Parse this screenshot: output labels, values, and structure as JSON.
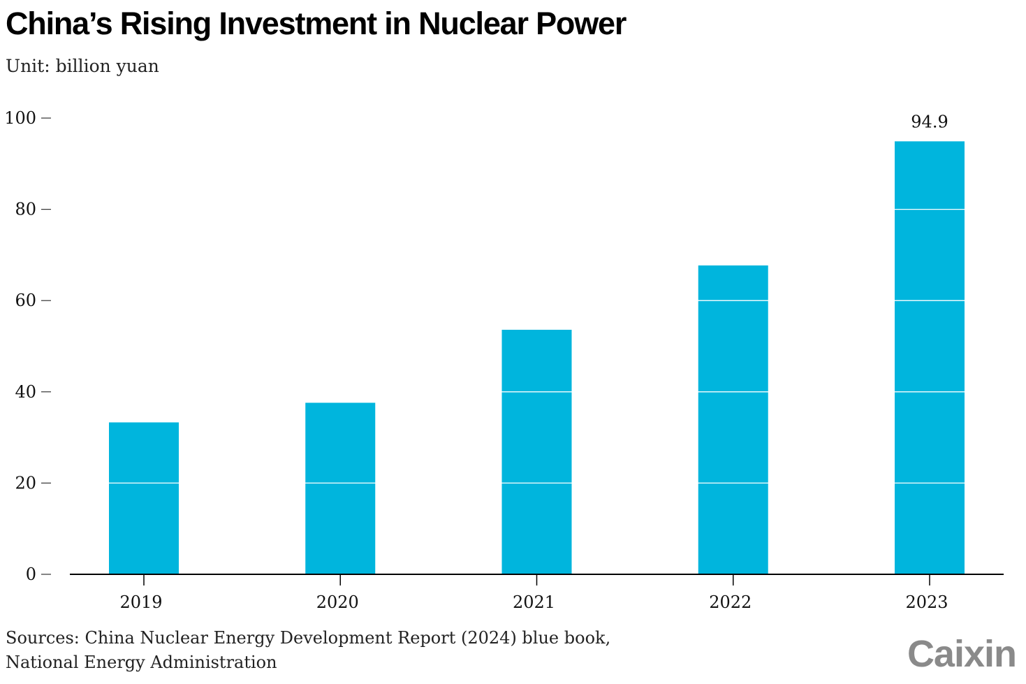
{
  "title": "China’s Rising Investment in Nuclear Power",
  "subtitle": "Unit: billion yuan",
  "source_lines": [
    "Sources: China Nuclear Energy Development Report (2024) blue book,",
    "National Energy Administration"
  ],
  "logo": "Caixin",
  "chart_data": {
    "type": "bar",
    "categories": [
      "2019",
      "2020",
      "2021",
      "2022",
      "2023"
    ],
    "values": [
      33.3,
      37.6,
      53.6,
      67.7,
      94.9
    ],
    "data_labels": [
      null,
      null,
      null,
      null,
      "94.9"
    ],
    "ylim": [
      0,
      100
    ],
    "yticks": [
      0,
      20,
      40,
      60,
      80,
      100
    ],
    "xlabel": "",
    "ylabel": "",
    "bar_color": "#00b5dd",
    "gridlines_over_bars": true,
    "gridline_color": "#ffffff",
    "axis_color": "#000000"
  }
}
